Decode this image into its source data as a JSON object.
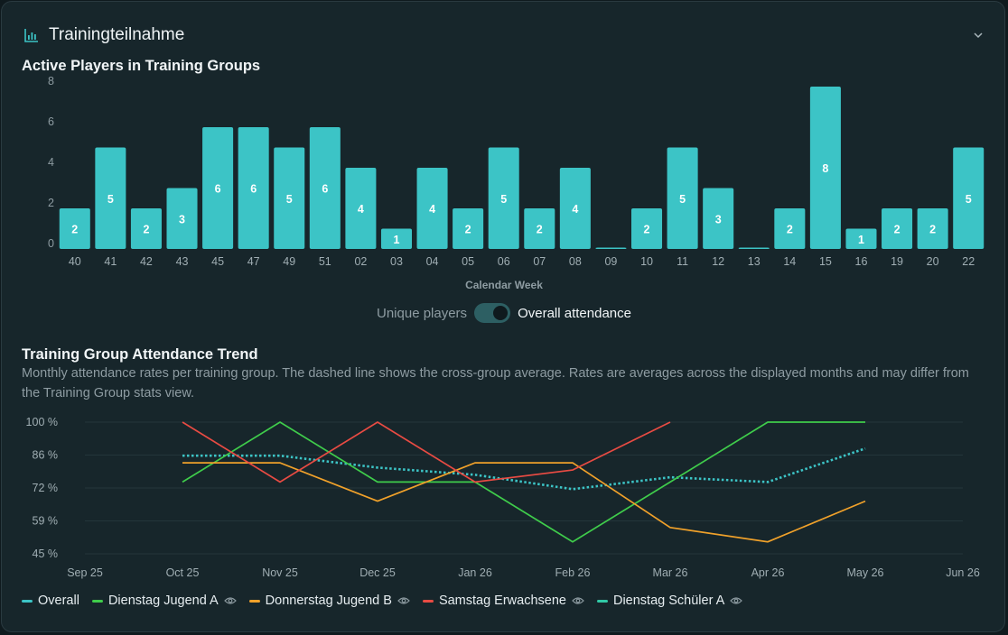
{
  "header": {
    "title": "Trainingteilnahme"
  },
  "bar_section": {
    "title": "Active Players in Training Groups"
  },
  "toggle": {
    "left_label": "Unique players",
    "right_label": "Overall attendance"
  },
  "trend_section": {
    "title": "Training Group Attendance Trend",
    "description": "Monthly attendance rates per training group. The dashed line shows the cross-group average. Rates are averages across the displayed months and may differ from the Training Group stats view."
  },
  "colors": {
    "bar": "#3cc4c6",
    "overall": "#3cc4c6",
    "dienstag_jugend_a": "#3fcc4b",
    "donnerstag_jugend_b": "#f0a12a",
    "samstag_erwachsene": "#e84b43",
    "dienstag_schueler_a": "#31c9a6"
  },
  "chart_data": [
    {
      "type": "bar",
      "title": "Active Players in Training Groups",
      "xlabel": "Calendar Week",
      "ylabel": "",
      "ylim": [
        0,
        8
      ],
      "yticks": [
        "0",
        "2",
        "4",
        "6",
        "8"
      ],
      "categories": [
        "40",
        "41",
        "42",
        "43",
        "45",
        "47",
        "49",
        "51",
        "02",
        "03",
        "04",
        "05",
        "06",
        "07",
        "08",
        "09",
        "10",
        "11",
        "12",
        "13",
        "14",
        "15",
        "16",
        "19",
        "20",
        "22"
      ],
      "values": [
        2,
        5,
        2,
        3,
        6,
        6,
        5,
        6,
        4,
        1,
        4,
        2,
        5,
        2,
        4,
        0,
        2,
        5,
        3,
        0,
        2,
        8,
        1,
        2,
        2,
        5
      ],
      "labels": [
        "2",
        "5",
        "2",
        "3",
        "6",
        "6",
        "5",
        "6",
        "4",
        "1",
        "4",
        "2",
        "5",
        "2",
        "4",
        "",
        "2",
        "5",
        "3",
        "",
        "2",
        "8",
        "1",
        "2",
        "2",
        "5"
      ],
      "grid": false
    },
    {
      "type": "line",
      "title": "Training Group Attendance Trend",
      "x": [
        "Sep 25",
        "Oct 25",
        "Nov 25",
        "Dec 25",
        "Jan 26",
        "Feb 26",
        "Mar 26",
        "Apr 26",
        "May 26",
        "Jun 26"
      ],
      "yticks": [
        "45 %",
        "59 %",
        "72 %",
        "86 %",
        "100 %"
      ],
      "ylim": [
        45,
        100
      ],
      "grid": true,
      "legend": "bottom",
      "series": [
        {
          "name": "Overall",
          "key": "overall",
          "dashed": true,
          "values": [
            null,
            86,
            86,
            81,
            78,
            72,
            77,
            75,
            89,
            null
          ]
        },
        {
          "name": "Dienstag Jugend A",
          "key": "dienstag_jugend_a",
          "dashed": false,
          "values": [
            null,
            75,
            100,
            75,
            75,
            50,
            75,
            100,
            100,
            null
          ]
        },
        {
          "name": "Donnerstag Jugend B",
          "key": "donnerstag_jugend_b",
          "dashed": false,
          "values": [
            null,
            83,
            83,
            67,
            83,
            83,
            56,
            50,
            67,
            null
          ]
        },
        {
          "name": "Samstag Erwachsene",
          "key": "samstag_erwachsene",
          "dashed": false,
          "values": [
            null,
            100,
            75,
            100,
            75,
            80,
            100,
            null,
            null,
            null
          ]
        },
        {
          "name": "Dienstag Schüler A",
          "key": "dienstag_schueler_a",
          "dashed": false,
          "values": [
            null,
            null,
            null,
            null,
            null,
            null,
            null,
            null,
            null,
            null
          ]
        }
      ]
    }
  ]
}
